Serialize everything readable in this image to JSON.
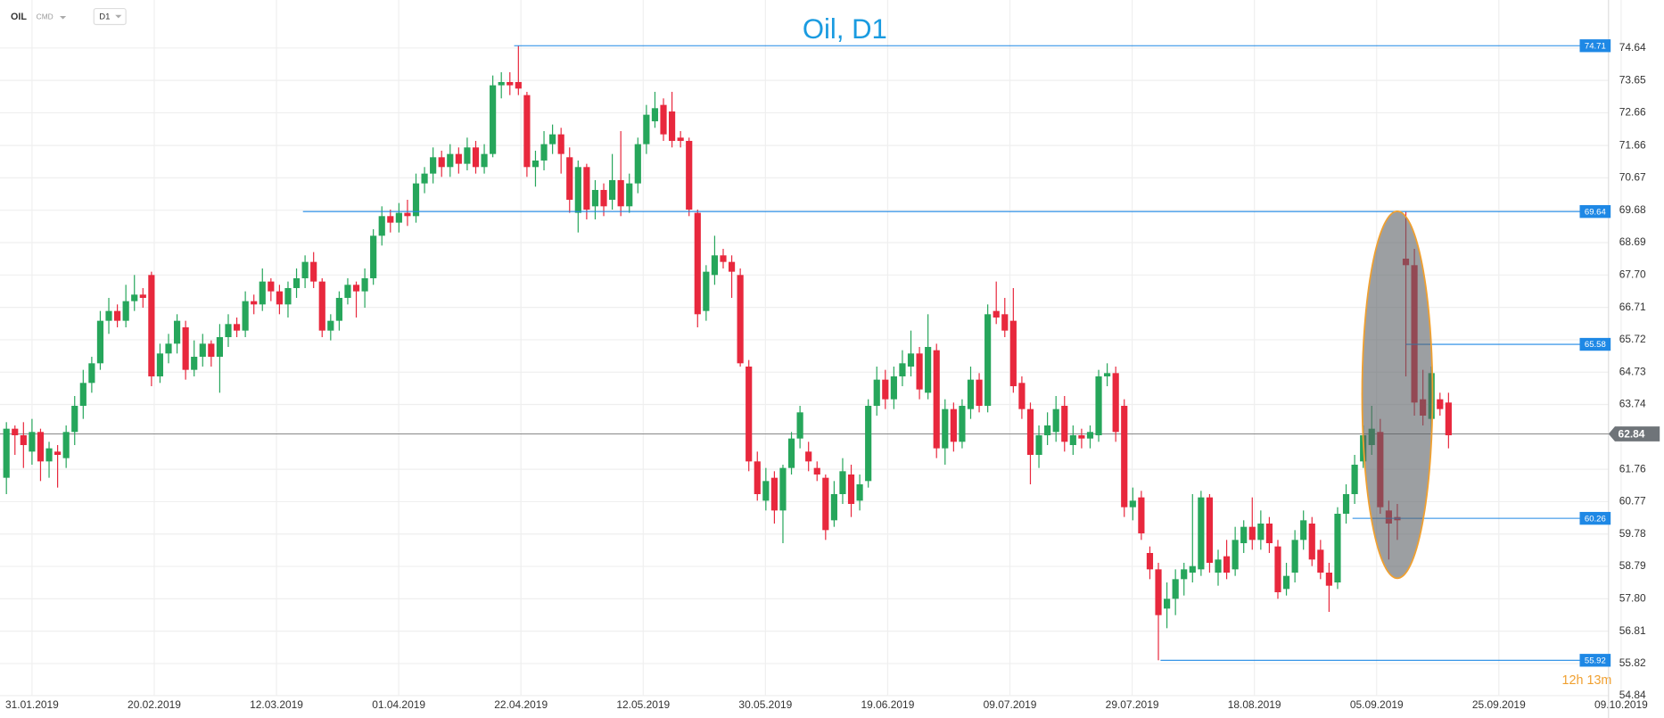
{
  "chart_data": {
    "type": "candlestick",
    "title": "Oil, D1",
    "symbol": "OIL",
    "market": "CMD",
    "interval": "D1",
    "timer": "12h 13m",
    "up_color": "#26a65b",
    "down_color": "#e8283d",
    "level_color": "#1e88e5",
    "grid": true,
    "ylim": [
      54.84,
      74.64
    ],
    "yticks": [
      74.64,
      73.65,
      72.66,
      71.66,
      70.67,
      69.68,
      68.69,
      {
        "value": 67.7,
        "label": "67.70"
      },
      66.71,
      65.72,
      64.73,
      63.74,
      61.76,
      60.77,
      59.78,
      58.79,
      {
        "value": 57.8,
        "label": "57.80"
      },
      56.81,
      55.82,
      54.84
    ],
    "xticks": [
      "31.01.2019",
      "20.02.2019",
      "12.03.2019",
      "01.04.2019",
      "22.04.2019",
      "12.05.2019",
      "30.05.2019",
      "19.06.2019",
      "09.07.2019",
      "29.07.2019",
      "18.08.2019",
      "05.09.2019",
      "25.09.2019",
      "09.10.2019"
    ],
    "last_price": 62.84,
    "levels": [
      74.71,
      69.64,
      65.58,
      60.26,
      55.92
    ],
    "candles": [
      [
        61.5,
        63.2,
        61.0,
        63.0
      ],
      [
        63.0,
        63.1,
        62.2,
        62.8
      ],
      [
        62.8,
        63.2,
        61.8,
        62.5
      ],
      [
        62.3,
        63.3,
        61.9,
        62.9
      ],
      [
        62.9,
        63.0,
        61.4,
        62.0
      ],
      [
        62.0,
        62.6,
        61.5,
        62.4
      ],
      [
        62.3,
        62.5,
        61.2,
        62.2
      ],
      [
        62.1,
        63.1,
        61.8,
        62.9
      ],
      [
        62.9,
        64.0,
        62.5,
        63.7
      ],
      [
        63.7,
        64.8,
        63.3,
        64.4
      ],
      [
        64.4,
        65.2,
        64.1,
        65.0
      ],
      [
        65.0,
        66.6,
        64.8,
        66.3
      ],
      [
        66.3,
        67.0,
        65.9,
        66.6
      ],
      [
        66.6,
        66.8,
        66.1,
        66.3
      ],
      [
        66.3,
        67.4,
        66.1,
        66.9
      ],
      [
        66.9,
        67.7,
        66.6,
        67.1
      ],
      [
        67.1,
        67.3,
        66.7,
        67.0
      ],
      [
        67.7,
        67.8,
        64.3,
        64.6
      ],
      [
        64.6,
        65.6,
        64.4,
        65.3
      ],
      [
        65.3,
        65.9,
        65.0,
        65.6
      ],
      [
        65.6,
        66.5,
        65.3,
        66.3
      ],
      [
        66.1,
        66.3,
        64.5,
        64.8
      ],
      [
        64.8,
        65.7,
        64.6,
        65.2
      ],
      [
        65.2,
        65.9,
        64.9,
        65.6
      ],
      [
        65.6,
        65.7,
        64.9,
        65.2
      ],
      [
        65.2,
        66.2,
        64.1,
        65.8
      ],
      [
        65.8,
        66.5,
        65.5,
        66.2
      ],
      [
        66.2,
        66.4,
        65.8,
        66.0
      ],
      [
        66.0,
        67.2,
        65.8,
        66.9
      ],
      [
        66.9,
        67.1,
        66.5,
        66.8
      ],
      [
        66.8,
        67.9,
        66.6,
        67.5
      ],
      [
        67.5,
        67.6,
        66.9,
        67.2
      ],
      [
        67.2,
        67.4,
        66.5,
        66.8
      ],
      [
        66.8,
        67.5,
        66.4,
        67.3
      ],
      [
        67.3,
        67.9,
        67.0,
        67.6
      ],
      [
        67.6,
        68.3,
        67.3,
        68.1
      ],
      [
        68.1,
        68.4,
        67.3,
        67.5
      ],
      [
        67.5,
        67.6,
        65.8,
        66.0
      ],
      [
        66.0,
        66.5,
        65.7,
        66.3
      ],
      [
        66.3,
        67.2,
        66.0,
        67.0
      ],
      [
        67.0,
        67.6,
        66.8,
        67.4
      ],
      [
        67.4,
        67.5,
        66.4,
        67.2
      ],
      [
        67.2,
        67.9,
        66.7,
        67.6
      ],
      [
        67.6,
        69.1,
        67.4,
        68.9
      ],
      [
        68.9,
        69.8,
        68.6,
        69.5
      ],
      [
        69.5,
        69.7,
        69.0,
        69.3
      ],
      [
        69.3,
        69.9,
        69.0,
        69.6
      ],
      [
        69.6,
        70.0,
        69.2,
        69.5
      ],
      [
        69.5,
        70.8,
        69.3,
        70.5
      ],
      [
        70.5,
        71.0,
        70.2,
        70.8
      ],
      [
        70.8,
        71.6,
        70.5,
        71.3
      ],
      [
        71.3,
        71.5,
        70.7,
        71.0
      ],
      [
        71.0,
        71.7,
        70.7,
        71.4
      ],
      [
        71.4,
        71.6,
        70.8,
        71.1
      ],
      [
        71.1,
        71.9,
        70.9,
        71.6
      ],
      [
        71.6,
        71.8,
        70.8,
        71.0
      ],
      [
        71.0,
        71.7,
        70.8,
        71.4
      ],
      [
        71.4,
        73.8,
        71.3,
        73.5
      ],
      [
        73.5,
        73.9,
        73.1,
        73.6
      ],
      [
        73.6,
        73.9,
        73.2,
        73.5
      ],
      [
        73.6,
        74.71,
        73.2,
        73.4
      ],
      [
        73.2,
        73.3,
        70.7,
        71.0
      ],
      [
        71.0,
        71.5,
        70.4,
        71.2
      ],
      [
        71.2,
        72.1,
        70.9,
        71.7
      ],
      [
        71.7,
        72.3,
        71.4,
        72.0
      ],
      [
        72.0,
        72.2,
        70.8,
        71.4
      ],
      [
        71.3,
        71.6,
        69.6,
        70.0
      ],
      [
        69.6,
        71.2,
        69.0,
        71.0
      ],
      [
        71.0,
        71.1,
        69.4,
        69.7
      ],
      [
        69.8,
        70.6,
        69.4,
        70.3
      ],
      [
        70.3,
        70.5,
        69.5,
        69.8
      ],
      [
        70.0,
        71.4,
        69.7,
        70.6
      ],
      [
        70.6,
        72.1,
        69.5,
        69.8
      ],
      [
        69.8,
        70.8,
        69.6,
        70.5
      ],
      [
        70.5,
        71.9,
        70.2,
        71.7
      ],
      [
        71.7,
        72.9,
        71.4,
        72.6
      ],
      [
        72.4,
        73.3,
        72.2,
        72.8
      ],
      [
        72.9,
        73.1,
        71.8,
        72.0
      ],
      [
        72.7,
        73.3,
        71.6,
        71.8
      ],
      [
        71.9,
        72.1,
        71.6,
        71.8
      ],
      [
        71.8,
        71.9,
        69.5,
        69.7
      ],
      [
        69.6,
        69.7,
        66.1,
        66.5
      ],
      [
        66.6,
        68.0,
        66.3,
        67.8
      ],
      [
        67.7,
        68.9,
        67.4,
        68.3
      ],
      [
        68.3,
        68.5,
        67.9,
        68.1
      ],
      [
        68.1,
        68.3,
        67.0,
        67.8
      ],
      [
        67.7,
        67.9,
        64.9,
        65.0
      ],
      [
        64.9,
        65.1,
        61.7,
        62.0
      ],
      [
        62.0,
        62.3,
        60.8,
        61.0
      ],
      [
        60.8,
        61.8,
        60.5,
        61.4
      ],
      [
        61.5,
        61.7,
        60.1,
        60.5
      ],
      [
        60.5,
        61.9,
        59.5,
        61.8
      ],
      [
        61.8,
        62.9,
        61.6,
        62.7
      ],
      [
        62.7,
        63.7,
        62.4,
        63.5
      ],
      [
        62.3,
        62.6,
        61.7,
        62.0
      ],
      [
        61.8,
        62.0,
        61.4,
        61.6
      ],
      [
        61.5,
        61.6,
        59.6,
        59.9
      ],
      [
        60.2,
        61.4,
        60.0,
        61.0
      ],
      [
        61.0,
        62.1,
        60.7,
        61.7
      ],
      [
        61.6,
        61.9,
        60.3,
        60.7
      ],
      [
        60.8,
        61.6,
        60.5,
        61.3
      ],
      [
        61.4,
        63.9,
        61.2,
        63.7
      ],
      [
        63.7,
        64.9,
        63.4,
        64.5
      ],
      [
        64.5,
        64.8,
        63.6,
        63.9
      ],
      [
        63.9,
        64.9,
        63.6,
        64.6
      ],
      [
        64.6,
        65.4,
        64.3,
        65.0
      ],
      [
        64.9,
        66.0,
        64.6,
        65.3
      ],
      [
        65.3,
        65.5,
        63.9,
        64.2
      ],
      [
        64.1,
        66.5,
        63.9,
        65.5
      ],
      [
        65.4,
        65.6,
        62.1,
        62.4
      ],
      [
        62.4,
        63.9,
        61.9,
        63.6
      ],
      [
        63.6,
        63.8,
        62.3,
        62.6
      ],
      [
        62.6,
        63.9,
        62.4,
        63.7
      ],
      [
        63.6,
        64.9,
        63.3,
        64.5
      ],
      [
        64.5,
        64.7,
        63.5,
        63.7
      ],
      [
        63.7,
        66.8,
        63.5,
        66.5
      ],
      [
        66.6,
        67.5,
        66.2,
        66.4
      ],
      [
        66.5,
        67.0,
        65.8,
        66.0
      ],
      [
        66.3,
        67.3,
        64.1,
        64.3
      ],
      [
        64.4,
        64.6,
        63.3,
        63.6
      ],
      [
        63.6,
        63.8,
        61.3,
        62.2
      ],
      [
        62.2,
        63.1,
        61.8,
        62.8
      ],
      [
        62.8,
        63.5,
        62.5,
        63.1
      ],
      [
        62.9,
        64.0,
        62.6,
        63.6
      ],
      [
        63.7,
        64.0,
        62.3,
        62.6
      ],
      [
        62.5,
        63.1,
        62.2,
        62.8
      ],
      [
        62.8,
        63.0,
        62.4,
        62.7
      ],
      [
        62.7,
        63.1,
        62.4,
        62.9
      ],
      [
        62.8,
        64.8,
        62.6,
        64.6
      ],
      [
        64.6,
        65.0,
        64.3,
        64.7
      ],
      [
        64.7,
        64.9,
        62.6,
        62.9
      ],
      [
        63.7,
        63.9,
        60.3,
        60.6
      ],
      [
        60.6,
        61.2,
        60.2,
        60.8
      ],
      [
        60.9,
        61.1,
        59.6,
        59.8
      ],
      [
        59.2,
        59.4,
        58.4,
        58.7
      ],
      [
        58.7,
        58.9,
        55.92,
        57.3
      ],
      [
        57.5,
        58.3,
        56.9,
        57.8
      ],
      [
        57.8,
        58.7,
        57.3,
        58.4
      ],
      [
        58.4,
        58.9,
        57.9,
        58.7
      ],
      [
        58.6,
        61.0,
        58.3,
        58.8
      ],
      [
        58.7,
        61.1,
        58.5,
        60.9
      ],
      [
        60.9,
        61.0,
        58.6,
        58.9
      ],
      [
        58.6,
        59.3,
        58.2,
        59.0
      ],
      [
        59.1,
        59.6,
        58.4,
        58.6
      ],
      [
        58.7,
        60.0,
        58.5,
        59.6
      ],
      [
        59.5,
        60.2,
        59.2,
        60.0
      ],
      [
        60.0,
        60.9,
        59.3,
        59.6
      ],
      [
        59.6,
        60.5,
        59.3,
        60.1
      ],
      [
        60.1,
        60.3,
        59.2,
        59.5
      ],
      [
        59.4,
        59.6,
        57.8,
        58.0
      ],
      [
        58.1,
        58.9,
        57.9,
        58.5
      ],
      [
        58.6,
        59.9,
        58.3,
        59.6
      ],
      [
        59.6,
        60.5,
        59.3,
        60.2
      ],
      [
        60.1,
        60.3,
        58.8,
        59.0
      ],
      [
        59.3,
        59.6,
        58.4,
        58.6
      ],
      [
        58.6,
        58.9,
        57.4,
        58.2
      ],
      [
        58.3,
        60.6,
        58.1,
        60.4
      ],
      [
        60.4,
        61.3,
        60.1,
        61.0
      ],
      [
        61.0,
        62.2,
        60.7,
        61.9
      ],
      [
        62.0,
        63.1,
        61.8,
        62.8
      ],
      [
        62.5,
        63.7,
        62.2,
        63.0
      ],
      [
        62.9,
        63.3,
        60.4,
        60.6
      ],
      [
        60.5,
        60.8,
        59.0,
        60.1
      ],
      [
        60.3,
        60.7,
        59.6,
        60.2
      ],
      [
        68.2,
        69.64,
        64.6,
        68.0
      ],
      [
        68.0,
        68.5,
        63.4,
        63.8
      ],
      [
        63.9,
        64.8,
        63.1,
        63.4
      ],
      [
        63.3,
        64.9,
        62.9,
        64.7
      ],
      [
        63.9,
        64.1,
        63.4,
        63.6
      ],
      [
        63.8,
        64.1,
        62.4,
        62.8
      ]
    ]
  }
}
